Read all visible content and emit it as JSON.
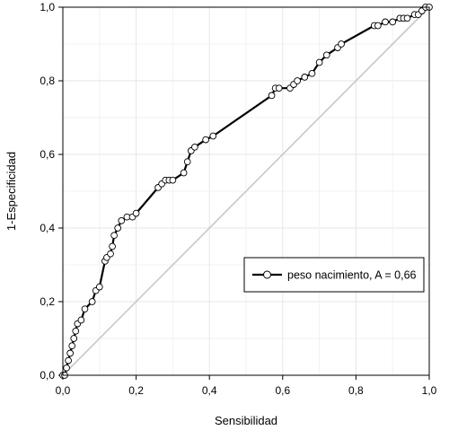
{
  "chart_data": {
    "type": "line",
    "xlabel": "Sensibilidad",
    "ylabel": "1-Especificidad",
    "xlim": [
      0,
      1
    ],
    "ylim": [
      0,
      1
    ],
    "x_ticks": [
      "0,0",
      "0,2",
      "0,4",
      "0,6",
      "0,8",
      "1,0"
    ],
    "y_ticks": [
      "0,0",
      "0,2",
      "0,4",
      "0,6",
      "0,8",
      "1,0"
    ],
    "grid": true,
    "legend_position": "lower-right",
    "colors": {
      "roc": "#000000",
      "diagonal": "#c8c8c8",
      "grid": "#e6e6e6",
      "marker_fill": "#ffffff"
    },
    "series": [
      {
        "name": "peso nacimiento, A = 0,66",
        "x": [
          0.0,
          0.005,
          0.01,
          0.015,
          0.02,
          0.025,
          0.03,
          0.035,
          0.04,
          0.05,
          0.06,
          0.08,
          0.09,
          0.1,
          0.115,
          0.12,
          0.13,
          0.135,
          0.14,
          0.15,
          0.16,
          0.175,
          0.19,
          0.2,
          0.26,
          0.27,
          0.28,
          0.29,
          0.3,
          0.33,
          0.34,
          0.35,
          0.36,
          0.39,
          0.41,
          0.57,
          0.58,
          0.59,
          0.62,
          0.63,
          0.64,
          0.66,
          0.68,
          0.7,
          0.72,
          0.75,
          0.76,
          0.85,
          0.86,
          0.88,
          0.9,
          0.92,
          0.93,
          0.94,
          0.96,
          0.97,
          0.98,
          0.99,
          1.0
        ],
        "y": [
          0.0,
          0.0,
          0.02,
          0.04,
          0.06,
          0.08,
          0.1,
          0.12,
          0.14,
          0.15,
          0.18,
          0.2,
          0.23,
          0.24,
          0.31,
          0.32,
          0.33,
          0.35,
          0.38,
          0.4,
          0.42,
          0.43,
          0.43,
          0.44,
          0.51,
          0.52,
          0.53,
          0.53,
          0.53,
          0.55,
          0.58,
          0.61,
          0.62,
          0.64,
          0.65,
          0.76,
          0.78,
          0.78,
          0.78,
          0.79,
          0.8,
          0.81,
          0.82,
          0.85,
          0.87,
          0.89,
          0.9,
          0.95,
          0.95,
          0.96,
          0.96,
          0.97,
          0.97,
          0.97,
          0.98,
          0.98,
          0.99,
          1.0,
          1.0
        ]
      }
    ]
  }
}
